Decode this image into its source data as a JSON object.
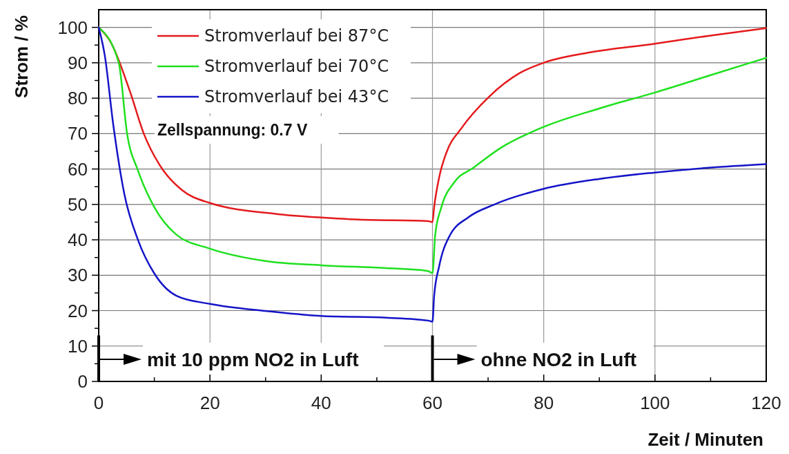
{
  "chart_data": {
    "type": "line",
    "xlabel": "Zeit / Minuten",
    "ylabel": "Strom / %",
    "xlim": [
      0,
      120
    ],
    "ylim": [
      0,
      105
    ],
    "xticks": [
      0,
      {
        "value": 10,
        "label": null
      },
      20,
      {
        "value": 30,
        "label": null
      },
      40,
      {
        "value": 50,
        "label": null
      },
      60,
      {
        "value": 70,
        "label": null
      },
      80,
      {
        "value": 90,
        "label": null
      },
      100,
      {
        "value": 110,
        "label": null
      },
      120
    ],
    "yticks": [
      0,
      {
        "value": 5,
        "label": null
      },
      10,
      {
        "value": 15,
        "label": null
      },
      20,
      {
        "value": 25,
        "label": null
      },
      30,
      {
        "value": 35,
        "label": null
      },
      40,
      {
        "value": 45,
        "label": null
      },
      50,
      {
        "value": 55,
        "label": null
      },
      60,
      {
        "value": 65,
        "label": null
      },
      70,
      {
        "value": 75,
        "label": null
      },
      80,
      {
        "value": 85,
        "label": null
      },
      90,
      {
        "value": 95,
        "label": null
      },
      100
    ],
    "grid": true,
    "legend": "top left",
    "marker": "none",
    "line_style": "solid",
    "annotations": [
      "Zellspannung: 0.7 V"
    ],
    "ref_lines": [
      {
        "axis": "x",
        "value": 0,
        "label": "mit 10 ppm NO2 in Luft",
        "color": "#000000"
      },
      {
        "axis": "x",
        "value": 60,
        "label": "ohne NO2 in Luft",
        "color": "#000000"
      }
    ],
    "series": [
      {
        "name": "Stromverlauf bei 87°C",
        "color": "#e41a1c",
        "x": [
          0,
          2.1,
          5.6,
          8.1,
          11,
          15,
          20,
          32,
          40,
          46.8,
          59.2,
          60,
          60.3,
          61.2,
          62.5,
          65.2,
          70.1,
          75.8,
          80,
          87.8,
          100,
          110,
          120
        ],
        "values": [
          100,
          96,
          82,
          70,
          61,
          54,
          50.4,
          47.3,
          46.3,
          45.7,
          45.3,
          45,
          49.2,
          57.6,
          64.6,
          71.5,
          80.3,
          87.2,
          90,
          92.8,
          95.4,
          97.7,
          99.8
        ]
      },
      {
        "name": "Stromverlauf bei 70°C",
        "color": "#1ee01e",
        "x": [
          0,
          3.6,
          5.1,
          7.1,
          10,
          14,
          20,
          30,
          40,
          51.7,
          59.2,
          60,
          60.5,
          61.6,
          63.9,
          67.4,
          72.3,
          80,
          90,
          100,
          110,
          120
        ],
        "values": [
          100,
          90,
          70,
          59.4,
          49.2,
          41.4,
          37.5,
          34,
          32.8,
          32,
          31.2,
          30.6,
          41.5,
          49.2,
          56.2,
          60.4,
          66,
          71.9,
          77.1,
          81.6,
          86.5,
          91.4
        ]
      },
      {
        "name": "Stromverlauf bei 43°C",
        "color": "#1414c8",
        "x": [
          0,
          1.1,
          2.6,
          4.6,
          7.1,
          10,
          14,
          20,
          30,
          40,
          51.7,
          59.2,
          60,
          60.3,
          61.2,
          63,
          66.5,
          71,
          80,
          90,
          100,
          110,
          120
        ],
        "values": [
          100,
          92,
          72.7,
          53,
          39.8,
          30.5,
          24.2,
          21.9,
          19.9,
          18.5,
          18,
          17.2,
          16.9,
          24.1,
          32.5,
          40.9,
          46.4,
          49.9,
          54.4,
          57.2,
          59,
          60.4,
          61.4
        ]
      }
    ]
  }
}
